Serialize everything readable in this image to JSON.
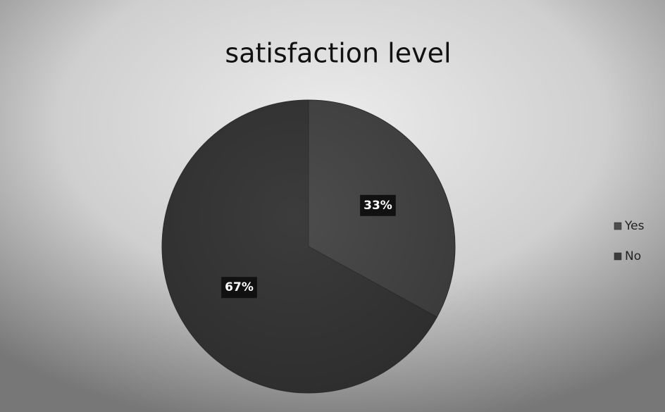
{
  "chart_data": {
    "type": "pie",
    "title": "satisfaction level",
    "categories": [
      "Yes",
      "No"
    ],
    "values": [
      33,
      67
    ],
    "value_labels": [
      "33%",
      "67%"
    ],
    "colors": [
      "#4d4d4d",
      "#3c3c3c"
    ],
    "legend": "right"
  }
}
